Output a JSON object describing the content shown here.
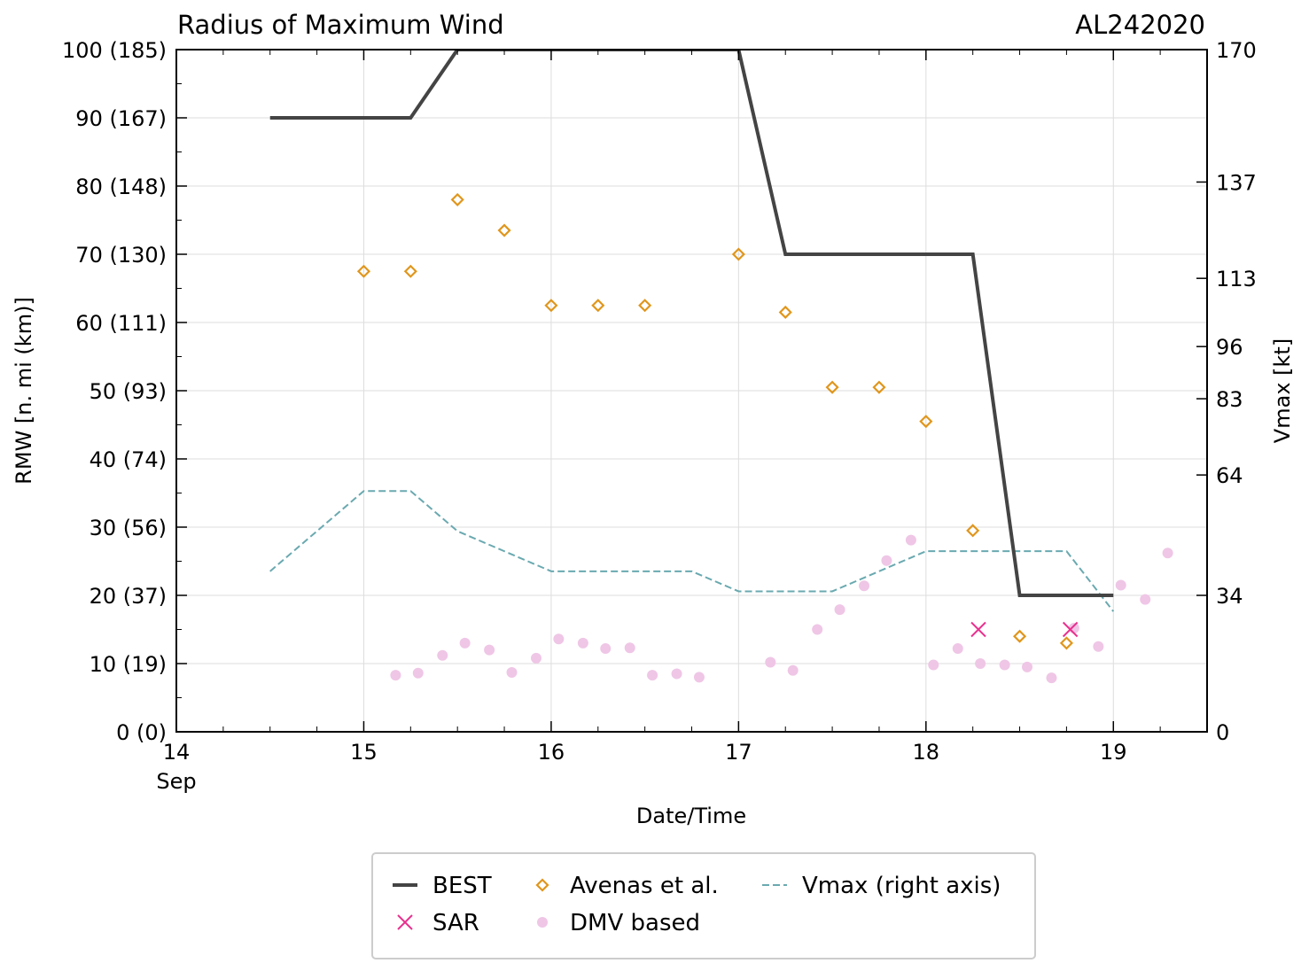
{
  "chart_data": {
    "type": "line",
    "title": "Radius of Maximum Wind",
    "title_right": "AL242020",
    "xlabel": "Date/Time",
    "ylabel": "RMW [n. mi (km)]",
    "ylabel_right": "Vmax [kt]",
    "xlim": [
      14,
      19.5
    ],
    "ylim": [
      0,
      100
    ],
    "x_ticks": [
      {
        "value": 14,
        "label": "14",
        "sublabel": "Sep"
      },
      {
        "value": 15,
        "label": "15"
      },
      {
        "value": 16,
        "label": "16"
      },
      {
        "value": 17,
        "label": "17"
      },
      {
        "value": 18,
        "label": "18"
      },
      {
        "value": 19,
        "label": "19"
      }
    ],
    "y_ticks": [
      {
        "value": 0,
        "label": "0 (0)"
      },
      {
        "value": 10,
        "label": "10 (19)"
      },
      {
        "value": 20,
        "label": "20 (37)"
      },
      {
        "value": 30,
        "label": "30 (56)"
      },
      {
        "value": 40,
        "label": "40 (74)"
      },
      {
        "value": 50,
        "label": "50 (93)"
      },
      {
        "value": 60,
        "label": "60 (111)"
      },
      {
        "value": 70,
        "label": "70 (130)"
      },
      {
        "value": 80,
        "label": "80 (148)"
      },
      {
        "value": 90,
        "label": "90 (167)"
      },
      {
        "value": 100,
        "label": "100 (185)"
      }
    ],
    "y2lim": [
      0,
      170
    ],
    "y2_ticks": [
      {
        "value": 0,
        "label": "0"
      },
      {
        "value": 34,
        "label": "34"
      },
      {
        "value": 64,
        "label": "64"
      },
      {
        "value": 83,
        "label": "83"
      },
      {
        "value": 96,
        "label": "96"
      },
      {
        "value": 113,
        "label": "113"
      },
      {
        "value": 137,
        "label": "137"
      },
      {
        "value": 170,
        "label": "170"
      }
    ],
    "series": [
      {
        "name": "BEST",
        "kind": "line",
        "color": "#444444",
        "x": [
          14.5,
          15.25,
          15.5,
          16.0,
          17.0,
          17.25,
          18.25,
          18.5,
          19.0
        ],
        "y": [
          90,
          90,
          100,
          100,
          100,
          70,
          70,
          20,
          20
        ]
      },
      {
        "name": "SAR",
        "kind": "x",
        "color": "#e8318f",
        "x": [
          18.28,
          18.77
        ],
        "y": [
          15,
          15
        ]
      },
      {
        "name": "Avenas et al.",
        "kind": "diamond",
        "color": "#e0961c",
        "x": [
          15.0,
          15.25,
          15.5,
          15.75,
          16.0,
          16.25,
          16.5,
          17.0,
          17.25,
          17.5,
          17.75,
          18.0,
          18.25,
          18.5,
          18.75
        ],
        "y": [
          67.5,
          67.5,
          78,
          73.5,
          62.5,
          62.5,
          62.5,
          70,
          61.5,
          50.5,
          50.5,
          45.5,
          29.5,
          14,
          13
        ]
      },
      {
        "name": "DMV based",
        "kind": "dot",
        "color": "#efc6e6",
        "x": [
          15.17,
          15.29,
          15.42,
          15.54,
          15.67,
          15.79,
          15.92,
          16.04,
          16.17,
          16.29,
          16.42,
          16.54,
          16.67,
          16.79,
          17.17,
          17.29,
          17.42,
          17.54,
          17.67,
          17.79,
          17.92,
          18.04,
          18.17,
          18.29,
          18.42,
          18.54,
          18.67,
          18.79,
          18.92,
          19.04,
          19.17,
          19.29
        ],
        "y": [
          8.3,
          8.6,
          11.2,
          13,
          12,
          8.7,
          10.8,
          13.6,
          13,
          12.2,
          12.3,
          8.3,
          8.5,
          8,
          10.2,
          9,
          15,
          17.9,
          21.4,
          25.1,
          28.1,
          9.8,
          12.2,
          10,
          9.8,
          9.5,
          7.9,
          15.2,
          12.5,
          21.5,
          19.4,
          26.2
        ]
      },
      {
        "name": "Vmax (right axis)",
        "kind": "dashed",
        "color": "#6aa9b0",
        "axis": "right",
        "x": [
          14.5,
          15.0,
          15.25,
          15.5,
          16.0,
          16.75,
          17.0,
          17.5,
          18.0,
          18.75,
          19.0
        ],
        "y": [
          40,
          60,
          60,
          50,
          40,
          40,
          35,
          35,
          45,
          45,
          30
        ]
      }
    ],
    "legend": {
      "position": "bottom",
      "entries": [
        "BEST",
        "Avenas et al.",
        "Vmax (right axis)",
        "SAR",
        "DMV based"
      ]
    }
  }
}
